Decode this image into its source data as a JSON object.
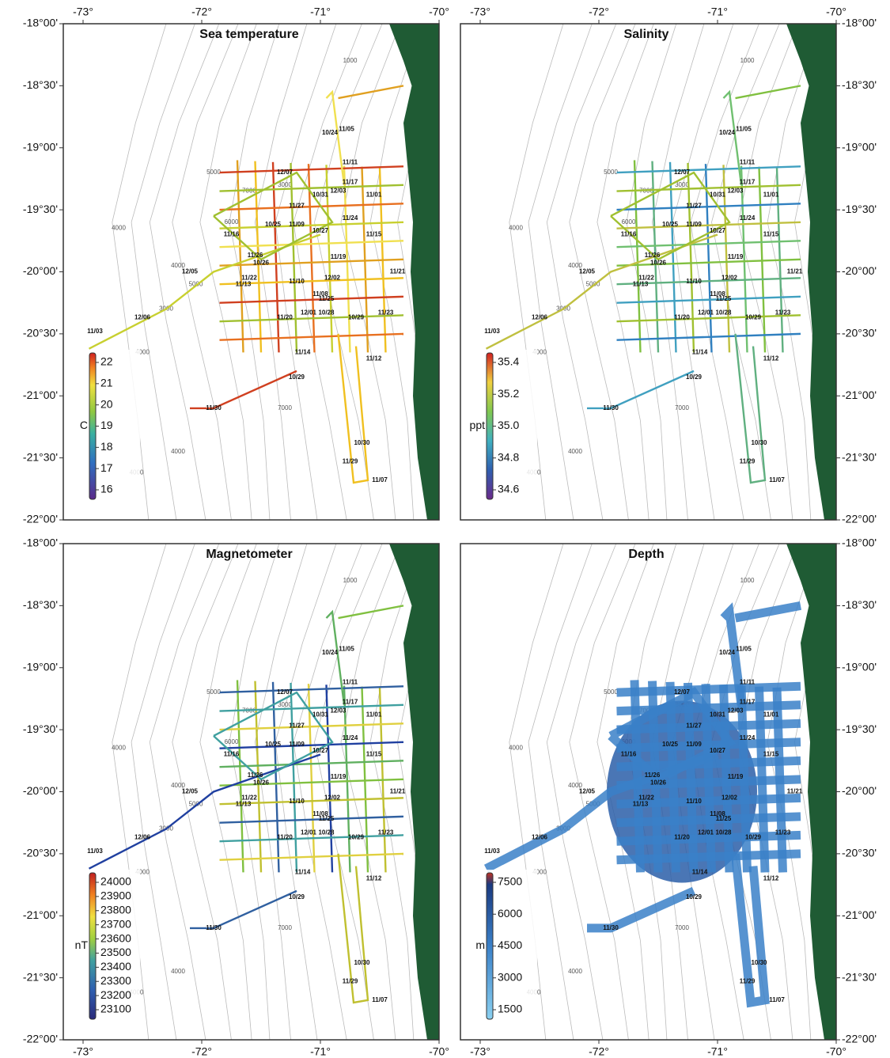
{
  "axes": {
    "lon_ticks": [
      {
        "value": -73,
        "label": "-73°"
      },
      {
        "value": -72,
        "label": "-72°"
      },
      {
        "value": -71,
        "label": "-71°"
      },
      {
        "value": -70,
        "label": "-70°"
      }
    ],
    "lat_ticks": [
      {
        "value": -18,
        "label": "-18°00'"
      },
      {
        "value": -18.5,
        "label": "-18°30'"
      },
      {
        "value": -19,
        "label": "-19°00'"
      },
      {
        "value": -19.5,
        "label": "-19°30'"
      },
      {
        "value": -20,
        "label": "-20°00'"
      },
      {
        "value": -20.5,
        "label": "-20°30'"
      },
      {
        "value": -21,
        "label": "-21°00'"
      },
      {
        "value": -21.5,
        "label": "-21°30'"
      },
      {
        "value": -22,
        "label": "-22°00'"
      }
    ]
  },
  "panels": [
    {
      "title": "Sea temperature",
      "colorbar": {
        "unit": "C",
        "ticks": [
          16,
          17,
          18,
          19,
          20,
          21,
          22
        ]
      }
    },
    {
      "title": "Salinity",
      "colorbar": {
        "unit": "ppt",
        "ticks": [
          34.6,
          34.8,
          {
            "value": 35.0,
            "label": "35.0"
          },
          35.2,
          35.4
        ]
      }
    },
    {
      "title": "Magnetometer",
      "colorbar": {
        "unit": "nT",
        "ticks": [
          23100,
          23200,
          23300,
          23400,
          23500,
          23600,
          23700,
          23800,
          23900,
          24000
        ]
      }
    },
    {
      "title": "Depth",
      "colorbar": {
        "unit": "m",
        "ticks": [
          1500,
          3000,
          4500,
          6000,
          7500
        ]
      }
    }
  ],
  "contour_labels": [
    "1000",
    "5000",
    "6000",
    "7000",
    "3000",
    "4000",
    "5000",
    "3000",
    "4000",
    "4000",
    "7000",
    "4000",
    "4000"
  ],
  "track_labels": [
    "10/24",
    "11/05",
    "11/11",
    "12/07",
    "11/17",
    "10/31",
    "12/03",
    "11/01",
    "11/27",
    "10/25",
    "11/09",
    "10/27",
    "11/24",
    "11/16",
    "11/15",
    "11/26",
    "10/26",
    "11/19",
    "12/05",
    "11/22",
    "11/13",
    "11/10",
    "12/02",
    "11/08",
    "11/25",
    "11/21",
    "11/20",
    "12/01",
    "10/28",
    "10/29",
    "11/23",
    "11/14",
    "11/12",
    "10/29",
    "11/30",
    "10/30",
    "11/29",
    "11/07",
    "11/03",
    "12/06"
  ]
}
